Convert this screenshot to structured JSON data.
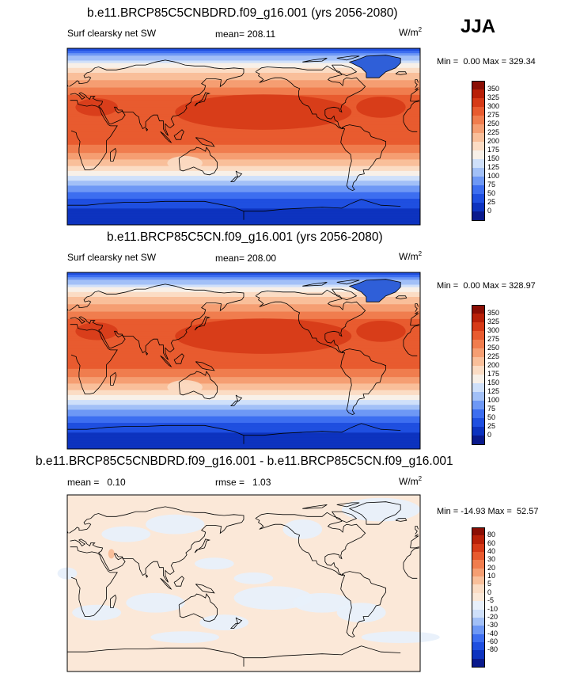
{
  "season": "JJA",
  "colors": {
    "abs_scale": [
      "#0a1a8c",
      "#0d33bf",
      "#1f4fe0",
      "#3d6ef0",
      "#6e98f5",
      "#a2c0f7",
      "#cfe0fa",
      "#f8f0e8",
      "#fbdcc4",
      "#f9bf9a",
      "#f59e72",
      "#f07d4e",
      "#e85b2f",
      "#d63a17",
      "#b82008",
      "#8a0e04"
    ],
    "diff_scale": [
      "#0a1a8c",
      "#0d33bf",
      "#1f4fe0",
      "#3d6ef0",
      "#6e98f5",
      "#a2c0f7",
      "#cfe0fa",
      "#e8f0fb",
      "#fbe8d8",
      "#fbdcc4",
      "#f9bf9a",
      "#f59e72",
      "#f07d4e",
      "#e85b2f",
      "#d63a17",
      "#b82008",
      "#8a0e04"
    ],
    "greenland": "#2f5fd8"
  },
  "chart_data": [
    {
      "type": "heatmap",
      "title": "b.e11.BRCP85C5CNBDRD.f09_g16.001 (yrs 2056-2080)",
      "subtitle_left": "Surf clearsky net SW",
      "mean_label": "mean=",
      "mean_value": "208.11",
      "units_base": "W/m",
      "units_exp": "2",
      "min_label": "Min =",
      "min_value": "0.00",
      "max_label": "Max =",
      "max_value": "329.34",
      "colorbar_levels": [
        "350",
        "325",
        "300",
        "275",
        "250",
        "225",
        "200",
        "175",
        "150",
        "125",
        "100",
        "75",
        "50",
        "25",
        "0"
      ],
      "zonal_profile_by_lat": [
        [
          90,
          30
        ],
        [
          75,
          150
        ],
        [
          60,
          220
        ],
        [
          45,
          270
        ],
        [
          30,
          295
        ],
        [
          15,
          300
        ],
        [
          0,
          290
        ],
        [
          -10,
          270
        ],
        [
          -20,
          240
        ],
        [
          -30,
          200
        ],
        [
          -40,
          150
        ],
        [
          -50,
          100
        ],
        [
          -60,
          60
        ],
        [
          -70,
          30
        ],
        [
          -80,
          10
        ],
        [
          -90,
          0
        ]
      ]
    },
    {
      "type": "heatmap",
      "title": "b.e11.BRCP85C5CN.f09_g16.001 (yrs 2056-2080)",
      "subtitle_left": "Surf clearsky net SW",
      "mean_label": "mean=",
      "mean_value": "208.00",
      "units_base": "W/m",
      "units_exp": "2",
      "min_label": "Min =",
      "min_value": "0.00",
      "max_label": "Max =",
      "max_value": "328.97",
      "colorbar_levels": [
        "350",
        "325",
        "300",
        "275",
        "250",
        "225",
        "200",
        "175",
        "150",
        "125",
        "100",
        "75",
        "50",
        "25",
        "0"
      ],
      "zonal_profile_by_lat": [
        [
          90,
          30
        ],
        [
          75,
          150
        ],
        [
          60,
          220
        ],
        [
          45,
          270
        ],
        [
          30,
          295
        ],
        [
          15,
          300
        ],
        [
          0,
          290
        ],
        [
          -10,
          270
        ],
        [
          -20,
          240
        ],
        [
          -30,
          200
        ],
        [
          -40,
          150
        ],
        [
          -50,
          100
        ],
        [
          -60,
          60
        ],
        [
          -70,
          30
        ],
        [
          -80,
          10
        ],
        [
          -90,
          0
        ]
      ]
    },
    {
      "type": "heatmap",
      "title": "b.e11.BRCP85C5CNBDRD.f09_g16.001 - b.e11.BRCP85C5CN.f09_g16.001",
      "mean_label": "mean =",
      "mean_value": "0.10",
      "rmse_label": "rmse =",
      "rmse_value": "1.03",
      "units_base": "W/m",
      "units_exp": "2",
      "min_label": "Min =",
      "min_value": "-14.93",
      "max_label": "Max =",
      "max_value": "52.57",
      "colorbar_levels": [
        "80",
        "60",
        "40",
        "30",
        "20",
        "10",
        "5",
        "0",
        "-5",
        "-10",
        "-20",
        "-30",
        "-40",
        "-60",
        "-80"
      ]
    }
  ]
}
